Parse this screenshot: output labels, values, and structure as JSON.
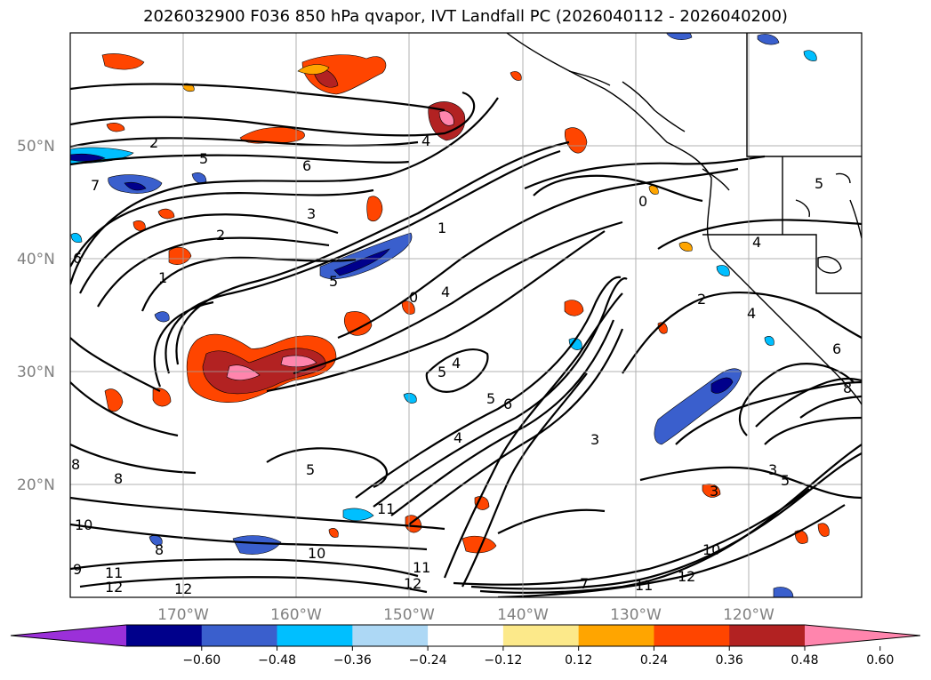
{
  "title": "2026032900 F036 850 hPa qvapor, IVT Landfall PC (2026040112 - 2026040200)",
  "map": {
    "lon_range": [
      -180,
      -110
    ],
    "lat_range": [
      10,
      60
    ],
    "lat_ticks": [
      "20°N",
      "30°N",
      "40°N",
      "50°N"
    ],
    "lon_ticks": [
      "170°W",
      "160°W",
      "150°W",
      "140°W",
      "130°W",
      "120°W"
    ],
    "grid": true
  },
  "colorbar": {
    "extend": "both",
    "colors": [
      "#9b30d9",
      "#00008b",
      "#3a5fcd",
      "#00bfff",
      "#add8f5",
      "#ffffff",
      "#fce98a",
      "#ffa500",
      "#ff4500",
      "#b22222",
      "#ff85ad"
    ],
    "tick_labels": [
      "−0.60",
      "−0.48",
      "−0.36",
      "−0.24",
      "−0.12",
      "0.12",
      "0.24",
      "0.36",
      "0.48",
      "0.60"
    ]
  },
  "contour_labels": [
    "2",
    "5",
    "6",
    "7",
    "3",
    "2",
    "1",
    "5",
    "4",
    "1",
    "0",
    "4",
    "5",
    "4",
    "6",
    "5",
    "4",
    "3",
    "5",
    "8",
    "8",
    "10",
    "11",
    "10",
    "9",
    "8",
    "11",
    "12",
    "12",
    "11",
    "12",
    "7",
    "11",
    "12",
    "10",
    "3",
    "3",
    "5",
    "2",
    "4",
    "6",
    "8",
    "0",
    "5",
    "6",
    "4"
  ]
}
